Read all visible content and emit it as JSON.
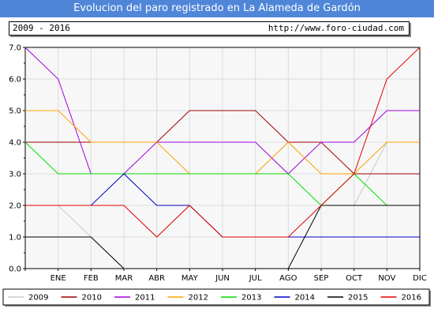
{
  "header": {
    "title": "Evolucion del paro registrado en La Alameda de Gardón",
    "years_range": "2009 - 2016",
    "url": "http://www.foro-ciudad.com"
  },
  "chart_data": {
    "type": "line",
    "title": "Evolucion del paro registrado en La Alameda de Gardón",
    "x": [
      "",
      "ENE",
      "FEB",
      "MAR",
      "ABR",
      "MAY",
      "JUN",
      "JUL",
      "AGO",
      "SEP",
      "OCT",
      "NOV",
      "DIC"
    ],
    "xlabel": "",
    "ylabel": "",
    "ylim": [
      0,
      7
    ],
    "yticks": [
      "0.0",
      "1.0",
      "2.0",
      "3.0",
      "4.0",
      "5.0",
      "6.0",
      "7.0"
    ],
    "grid": true,
    "legend_position": "bottom",
    "series": [
      {
        "name": "2009",
        "color": "#c8c8c8",
        "values": [
          2,
          2,
          1,
          0,
          null,
          null,
          null,
          null,
          null,
          null,
          2,
          4,
          null
        ]
      },
      {
        "name": "2010",
        "color": "#a00000",
        "values": [
          4,
          4,
          4,
          4,
          4,
          5,
          5,
          5,
          4,
          4,
          3,
          3,
          3
        ]
      },
      {
        "name": "2011",
        "color": "#a000e0",
        "values": [
          7,
          6,
          3,
          3,
          4,
          4,
          4,
          4,
          3,
          4,
          4,
          5,
          5
        ]
      },
      {
        "name": "2012",
        "color": "#ffa000",
        "values": [
          5,
          5,
          4,
          4,
          4,
          3,
          3,
          3,
          4,
          3,
          3,
          4,
          4
        ]
      },
      {
        "name": "2013",
        "color": "#00e000",
        "values": [
          4,
          3,
          3,
          3,
          3,
          3,
          3,
          3,
          3,
          2,
          3,
          2,
          null
        ]
      },
      {
        "name": "2014",
        "color": "#0000c8",
        "values": [
          null,
          null,
          2,
          3,
          2,
          2,
          1,
          1,
          1,
          1,
          1,
          1,
          1
        ]
      },
      {
        "name": "2015",
        "color": "#000000",
        "values": [
          1,
          1,
          1,
          0,
          null,
          null,
          null,
          null,
          0,
          2,
          2,
          2,
          2
        ]
      },
      {
        "name": "2016",
        "color": "#e00000",
        "values": [
          2,
          2,
          2,
          2,
          1,
          2,
          1,
          1,
          1,
          2,
          3,
          6,
          7
        ]
      }
    ]
  }
}
